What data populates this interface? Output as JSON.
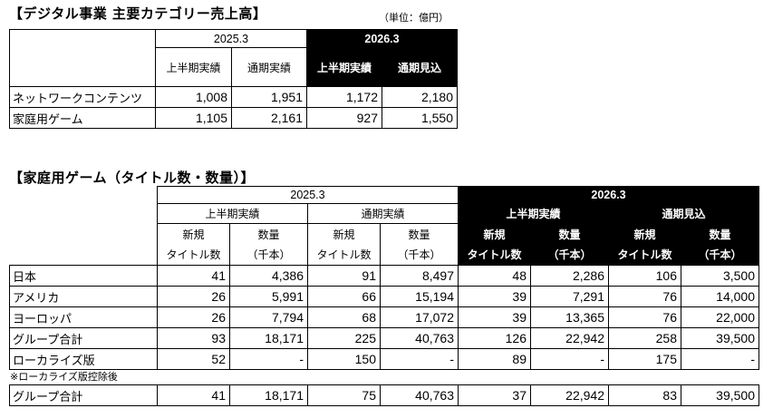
{
  "table1": {
    "title": "【デジタル事業 主要カテゴリー売上高】",
    "unit": "（単位：億円）",
    "year_prev": "2025.3",
    "year_curr": "2026.3",
    "col_labels": [
      "上半期実績",
      "通期実績",
      "上半期実績",
      "通期見込"
    ],
    "rows": [
      {
        "label": "ネットワークコンテンツ",
        "values": [
          "1,008",
          "1,951",
          "1,172",
          "2,180"
        ]
      },
      {
        "label": "家庭用ゲーム",
        "values": [
          "1,105",
          "2,161",
          "927",
          "1,550"
        ]
      }
    ]
  },
  "table2": {
    "title": "【家庭用ゲーム（タイトル数・数量）】",
    "year_prev": "2025.3",
    "year_curr": "2026.3",
    "periods": [
      "上半期実績",
      "通期実績",
      "上半期実績",
      "通期見込"
    ],
    "sub_top": [
      "新規",
      "数量"
    ],
    "sub_bottom": [
      "タイトル数",
      "（千本）"
    ],
    "rows": [
      {
        "label": "日本",
        "values": [
          "41",
          "4,386",
          "91",
          "8,497",
          "48",
          "2,286",
          "106",
          "3,500"
        ]
      },
      {
        "label": "アメリカ",
        "values": [
          "26",
          "5,991",
          "66",
          "15,194",
          "39",
          "7,291",
          "76",
          "14,000"
        ]
      },
      {
        "label": "ヨーロッパ",
        "values": [
          "26",
          "7,794",
          "68",
          "17,072",
          "39",
          "13,365",
          "76",
          "22,000"
        ]
      },
      {
        "label": "グループ合計",
        "values": [
          "93",
          "18,171",
          "225",
          "40,763",
          "126",
          "22,942",
          "258",
          "39,500"
        ]
      },
      {
        "label": "ローカライズ版",
        "values": [
          "52",
          "-",
          "150",
          "-",
          "89",
          "-",
          "175",
          "-"
        ]
      }
    ],
    "note": "※ローカライズ版控除後",
    "total_row": {
      "label": "グループ合計",
      "values": [
        "41",
        "18,171",
        "75",
        "40,763",
        "37",
        "22,942",
        "83",
        "39,500"
      ]
    }
  }
}
